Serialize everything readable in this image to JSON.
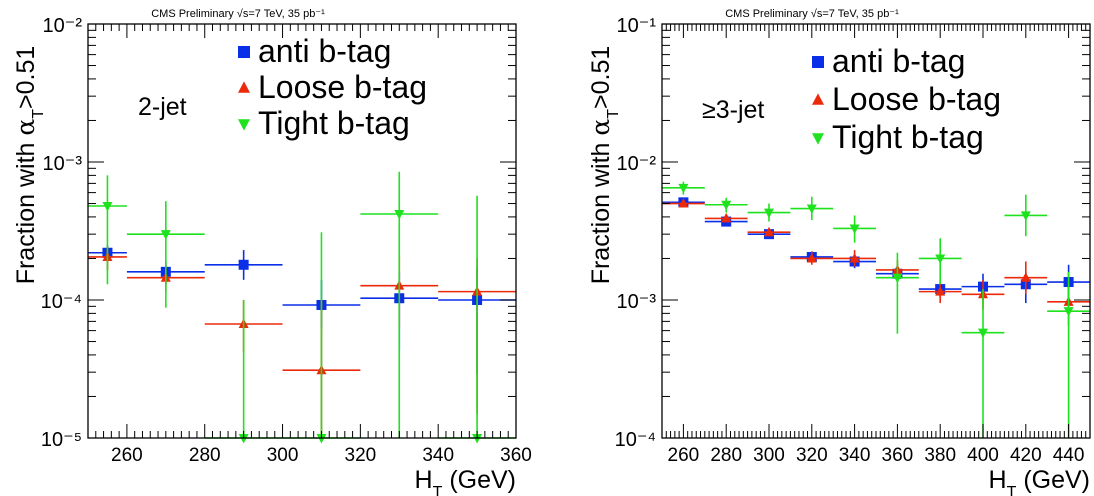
{
  "colors": {
    "anti": "#0a2fe8",
    "loose": "#ec2a0a",
    "tight": "#1ee21e",
    "frame": "#000000"
  },
  "chart_data": [
    {
      "type": "scatter",
      "header": "CMS Preliminary √s=7 TeV, 35 pb⁻¹",
      "ylabel": "Fraction with α_T>0.51",
      "xlabel": "H_T (GeV)",
      "annotation": "2-jet",
      "yscale": "log",
      "xlim": [
        250,
        360
      ],
      "ylim": [
        1e-05,
        0.01
      ],
      "x_ticks": [
        260,
        280,
        300,
        320,
        340,
        360
      ],
      "y_ticks": [
        {
          "value": 1e-05,
          "label": "10⁻⁵"
        },
        {
          "value": 0.0001,
          "label": "10⁻⁴"
        },
        {
          "value": 0.001,
          "label": "10⁻³"
        },
        {
          "value": 0.01,
          "label": "10⁻²"
        }
      ],
      "series": [
        {
          "name": "anti b-tag",
          "marker": "square",
          "color": "#0a2fe8",
          "points": [
            {
              "x": 255,
              "xlo": 250,
              "xhi": 260,
              "y": 0.00022,
              "ylo": 0.00019,
              "yhi": 0.00025
            },
            {
              "x": 270,
              "xlo": 260,
              "xhi": 280,
              "y": 0.00016,
              "ylo": 0.00013,
              "yhi": 0.00019
            },
            {
              "x": 290,
              "xlo": 280,
              "xhi": 300,
              "y": 0.00018,
              "ylo": 0.00014,
              "yhi": 0.00023
            },
            {
              "x": 310,
              "xlo": 300,
              "xhi": 320,
              "y": 9.2e-05,
              "ylo": 6.2e-05,
              "yhi": 0.00014
            },
            {
              "x": 330,
              "xlo": 320,
              "xhi": 340,
              "y": 0.000103,
              "ylo": 4.3e-05,
              "yhi": 0.00016
            },
            {
              "x": 350,
              "xlo": 340,
              "xhi": 360,
              "y": 0.0001,
              "ylo": 2.9e-05,
              "yhi": 0.00017
            }
          ]
        },
        {
          "name": "Loose b-tag",
          "marker": "triangle-up",
          "color": "#ec2a0a",
          "points": [
            {
              "x": 255,
              "xlo": 250,
              "xhi": 260,
              "y": 0.000205,
              "ylo": 0.000165,
              "yhi": 0.000245
            },
            {
              "x": 270,
              "xlo": 260,
              "xhi": 280,
              "y": 0.000145,
              "ylo": 0.000115,
              "yhi": 0.00018
            },
            {
              "x": 290,
              "xlo": 280,
              "xhi": 300,
              "y": 6.7e-05,
              "ylo": 4.2e-05,
              "yhi": 0.0001
            },
            {
              "x": 310,
              "xlo": 300,
              "xhi": 320,
              "y": 3.1e-05,
              "ylo": 1e-05,
              "yhi": 0.0001
            },
            {
              "x": 330,
              "xlo": 320,
              "xhi": 340,
              "y": 0.000127,
              "ylo": 6.3e-05,
              "yhi": 0.00021
            },
            {
              "x": 350,
              "xlo": 340,
              "xhi": 360,
              "y": 0.000115,
              "ylo": 1.5e-05,
              "yhi": 0.0002
            }
          ]
        },
        {
          "name": "Tight b-tag",
          "marker": "triangle-down",
          "color": "#1ee21e",
          "points": [
            {
              "x": 255,
              "xlo": 250,
              "xhi": 260,
              "y": 0.00048,
              "ylo": 0.00013,
              "yhi": 0.0008
            },
            {
              "x": 270,
              "xlo": 260,
              "xhi": 280,
              "y": 0.0003,
              "ylo": 8.8e-05,
              "yhi": 0.00052
            },
            {
              "x": 290,
              "xlo": 280,
              "xhi": 300,
              "y": 1e-05,
              "ylo": 1e-05,
              "yhi": 0.0001
            },
            {
              "x": 310,
              "xlo": 300,
              "xhi": 320,
              "y": 1e-05,
              "ylo": 1e-05,
              "yhi": 0.00031
            },
            {
              "x": 330,
              "xlo": 320,
              "xhi": 340,
              "y": 0.00042,
              "ylo": 1e-05,
              "yhi": 0.00085
            },
            {
              "x": 350,
              "xlo": 340,
              "xhi": 360,
              "y": 1e-05,
              "ylo": 1e-05,
              "yhi": 0.00057
            }
          ]
        }
      ],
      "legend_position": "top-right"
    },
    {
      "type": "scatter",
      "header": "CMS Preliminary √s=7 TeV, 35 pb⁻¹",
      "ylabel": "Fraction with α_T>0.51",
      "xlabel": "H_T (GeV)",
      "annotation": "≥3-jet",
      "yscale": "log",
      "xlim": [
        250,
        450
      ],
      "ylim": [
        0.0001,
        0.1
      ],
      "x_ticks": [
        260,
        280,
        300,
        320,
        340,
        360,
        380,
        400,
        420,
        440
      ],
      "y_ticks": [
        {
          "value": 0.0001,
          "label": "10⁻⁴"
        },
        {
          "value": 0.001,
          "label": "10⁻³"
        },
        {
          "value": 0.01,
          "label": "10⁻²"
        },
        {
          "value": 0.1,
          "label": "10⁻¹"
        }
      ],
      "series": [
        {
          "name": "anti b-tag",
          "marker": "square",
          "color": "#0a2fe8",
          "points": [
            {
              "x": 260,
              "xlo": 250,
              "xhi": 270,
              "y": 0.0051,
              "ylo": 0.0049,
              "yhi": 0.0053
            },
            {
              "x": 280,
              "xlo": 270,
              "xhi": 290,
              "y": 0.0037,
              "ylo": 0.00355,
              "yhi": 0.0039
            },
            {
              "x": 300,
              "xlo": 290,
              "xhi": 310,
              "y": 0.003,
              "ylo": 0.00285,
              "yhi": 0.0032
            },
            {
              "x": 320,
              "xlo": 310,
              "xhi": 330,
              "y": 0.00205,
              "ylo": 0.0019,
              "yhi": 0.00225
            },
            {
              "x": 340,
              "xlo": 330,
              "xhi": 350,
              "y": 0.0019,
              "ylo": 0.0017,
              "yhi": 0.0021
            },
            {
              "x": 360,
              "xlo": 350,
              "xhi": 370,
              "y": 0.00155,
              "ylo": 0.00135,
              "yhi": 0.0018
            },
            {
              "x": 380,
              "xlo": 370,
              "xhi": 390,
              "y": 0.0012,
              "ylo": 0.00105,
              "yhi": 0.00135
            },
            {
              "x": 400,
              "xlo": 390,
              "xhi": 410,
              "y": 0.00125,
              "ylo": 0.001,
              "yhi": 0.00155
            },
            {
              "x": 420,
              "xlo": 410,
              "xhi": 430,
              "y": 0.0013,
              "ylo": 0.00095,
              "yhi": 0.0016
            },
            {
              "x": 440,
              "xlo": 430,
              "xhi": 450,
              "y": 0.00135,
              "ylo": 0.00095,
              "yhi": 0.0018
            }
          ]
        },
        {
          "name": "Loose b-tag",
          "marker": "triangle-up",
          "color": "#ec2a0a",
          "points": [
            {
              "x": 260,
              "xlo": 250,
              "xhi": 270,
              "y": 0.005,
              "ylo": 0.0047,
              "yhi": 0.0053
            },
            {
              "x": 280,
              "xlo": 270,
              "xhi": 290,
              "y": 0.0039,
              "ylo": 0.00365,
              "yhi": 0.00415
            },
            {
              "x": 300,
              "xlo": 290,
              "xhi": 310,
              "y": 0.0031,
              "ylo": 0.0029,
              "yhi": 0.0033
            },
            {
              "x": 320,
              "xlo": 310,
              "xhi": 330,
              "y": 0.002,
              "ylo": 0.0018,
              "yhi": 0.00225
            },
            {
              "x": 340,
              "xlo": 330,
              "xhi": 350,
              "y": 0.002,
              "ylo": 0.00175,
              "yhi": 0.0023
            },
            {
              "x": 360,
              "xlo": 350,
              "xhi": 370,
              "y": 0.00165,
              "ylo": 0.0014,
              "yhi": 0.00195
            },
            {
              "x": 380,
              "xlo": 370,
              "xhi": 390,
              "y": 0.00115,
              "ylo": 0.00095,
              "yhi": 0.00135
            },
            {
              "x": 400,
              "xlo": 390,
              "xhi": 410,
              "y": 0.0011,
              "ylo": 0.00085,
              "yhi": 0.0014
            },
            {
              "x": 420,
              "xlo": 410,
              "xhi": 430,
              "y": 0.00145,
              "ylo": 0.0011,
              "yhi": 0.0019
            },
            {
              "x": 440,
              "xlo": 430,
              "xhi": 450,
              "y": 0.00097,
              "ylo": 0.00065,
              "yhi": 0.0014
            }
          ]
        },
        {
          "name": "Tight b-tag",
          "marker": "triangle-down",
          "color": "#1ee21e",
          "points": [
            {
              "x": 260,
              "xlo": 250,
              "xhi": 270,
              "y": 0.0065,
              "ylo": 0.0058,
              "yhi": 0.0072
            },
            {
              "x": 280,
              "xlo": 270,
              "xhi": 290,
              "y": 0.0049,
              "ylo": 0.0043,
              "yhi": 0.0055
            },
            {
              "x": 300,
              "xlo": 290,
              "xhi": 310,
              "y": 0.0043,
              "ylo": 0.0037,
              "yhi": 0.005
            },
            {
              "x": 320,
              "xlo": 310,
              "xhi": 330,
              "y": 0.0046,
              "ylo": 0.0038,
              "yhi": 0.0056
            },
            {
              "x": 340,
              "xlo": 330,
              "xhi": 350,
              "y": 0.0033,
              "ylo": 0.0026,
              "yhi": 0.0041
            },
            {
              "x": 360,
              "xlo": 350,
              "xhi": 370,
              "y": 0.00145,
              "ylo": 0.00057,
              "yhi": 0.0022
            },
            {
              "x": 380,
              "xlo": 370,
              "xhi": 390,
              "y": 0.002,
              "ylo": 0.0013,
              "yhi": 0.0028
            },
            {
              "x": 400,
              "xlo": 390,
              "xhi": 410,
              "y": 0.00058,
              "ylo": 0.0001,
              "yhi": 0.0012
            },
            {
              "x": 420,
              "xlo": 410,
              "xhi": 430,
              "y": 0.0041,
              "ylo": 0.0029,
              "yhi": 0.0058
            },
            {
              "x": 440,
              "xlo": 430,
              "xhi": 450,
              "y": 0.00083,
              "ylo": 0.0001,
              "yhi": 0.0016
            }
          ]
        }
      ],
      "legend_position": "top-right"
    }
  ]
}
